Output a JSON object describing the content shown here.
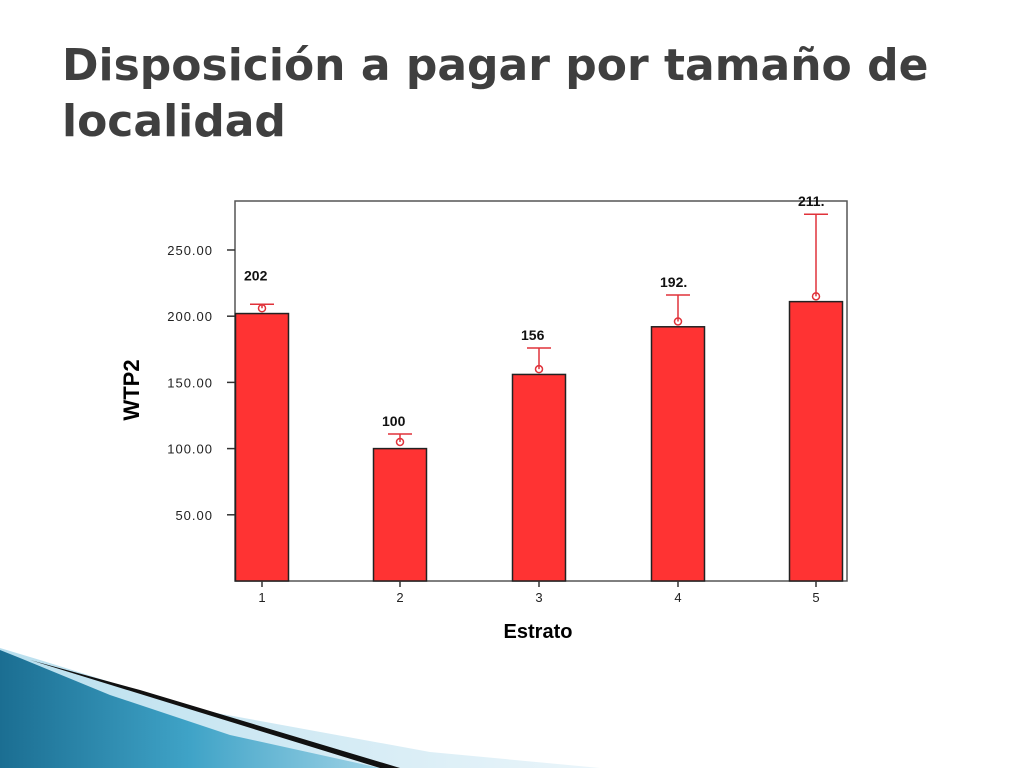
{
  "slide": {
    "title": "Disposición a pagar por tamaño de localidad"
  },
  "colors": {
    "bar": "#ff3333",
    "error_bar": "#e0323a",
    "title": "#3f3f3f",
    "accent_blue": "#2f8fb3"
  },
  "chart_data": {
    "type": "bar",
    "xlabel": "Estrato",
    "ylabel": "WTP2",
    "categories": [
      "1",
      "2",
      "3",
      "4",
      "5"
    ],
    "values": [
      202,
      100,
      156,
      192,
      211
    ],
    "value_labels": [
      "202",
      "100",
      "156",
      "192.",
      "211."
    ],
    "means": [
      206,
      105,
      160,
      196,
      215
    ],
    "error_upper": [
      209,
      111,
      176,
      216,
      277
    ],
    "ylim": [
      0,
      287
    ],
    "yticks": [
      50,
      100,
      150,
      200,
      250
    ],
    "ytick_labels": [
      "50.00",
      "100.00",
      "150.00",
      "200.00",
      "250.00"
    ],
    "grid": false
  }
}
